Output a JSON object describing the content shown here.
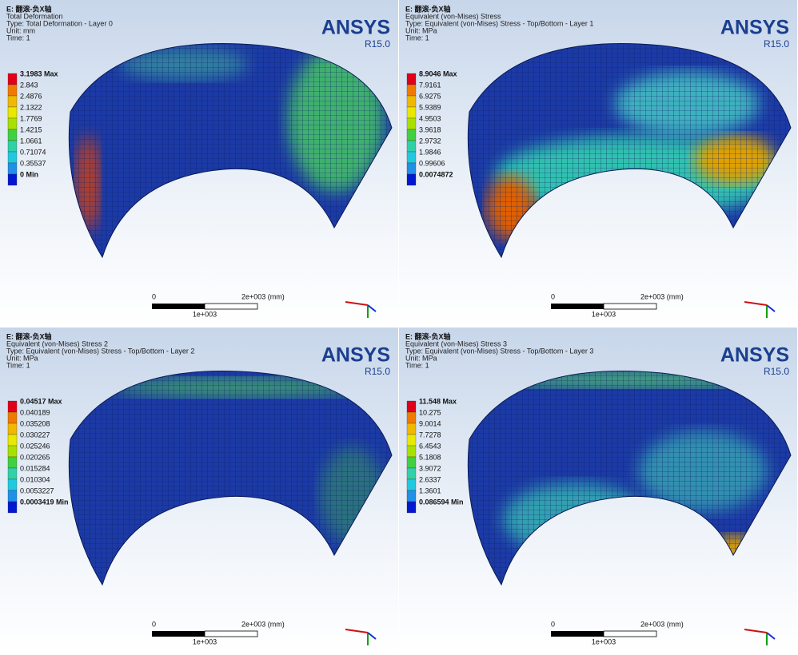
{
  "panels": [
    {
      "header": [
        "E: 翻滚-负X轴",
        "Total Deformation",
        "Type: Total Deformation - Layer 0",
        "Unit: mm",
        "Time: 1"
      ],
      "logo": "ANSYS",
      "version": "R15.0",
      "legend": [
        "3.1983 Max",
        "2.843",
        "2.4876",
        "2.1322",
        "1.7769",
        "1.4215",
        "1.0661",
        "0.71074",
        "0.35537",
        "0 Min"
      ],
      "scale": {
        "start": "0",
        "end": "2e+003 (mm)",
        "mid": "1e+003"
      }
    },
    {
      "header": [
        "E: 翻滚-负X轴",
        "Equivalent (von-Mises) Stress",
        "Type: Equivalent (von-Mises) Stress - Top/Bottom - Layer 1",
        "Unit: MPa",
        "Time: 1"
      ],
      "logo": "ANSYS",
      "version": "R15.0",
      "legend": [
        "8.9046 Max",
        "7.9161",
        "6.9275",
        "5.9389",
        "4.9503",
        "3.9618",
        "2.9732",
        "1.9846",
        "0.99606",
        "0.0074872"
      ],
      "scale": {
        "start": "0",
        "end": "2e+003 (mm)",
        "mid": "1e+003"
      }
    },
    {
      "header": [
        "E: 翻滚-负X轴",
        "Equivalent (von-Mises) Stress 2",
        "Type: Equivalent (von-Mises) Stress - Top/Bottom - Layer 2",
        "Unit: MPa",
        "Time: 1"
      ],
      "logo": "ANSYS",
      "version": "R15.0",
      "legend": [
        "0.04517 Max",
        "0.040189",
        "0.035208",
        "0.030227",
        "0.025246",
        "0.020265",
        "0.015284",
        "0.010304",
        "0.0053227",
        "0.0003419 Min"
      ],
      "scale": {
        "start": "0",
        "end": "2e+003 (mm)",
        "mid": "1e+003"
      }
    },
    {
      "header": [
        "E: 翻滚-负X轴",
        "Equivalent (von-Mises) Stress 3",
        "Type: Equivalent (von-Mises) Stress - Top/Bottom - Layer 3",
        "Unit: MPa",
        "Time: 1"
      ],
      "logo": "ANSYS",
      "version": "R15.0",
      "legend": [
        "11.548 Max",
        "10.275",
        "9.0014",
        "7.7278",
        "6.4543",
        "5.1808",
        "3.9072",
        "2.6337",
        "1.3601",
        "0.086594 Min"
      ],
      "scale": {
        "start": "0",
        "end": "2e+003 (mm)",
        "mid": "1e+003"
      }
    }
  ]
}
